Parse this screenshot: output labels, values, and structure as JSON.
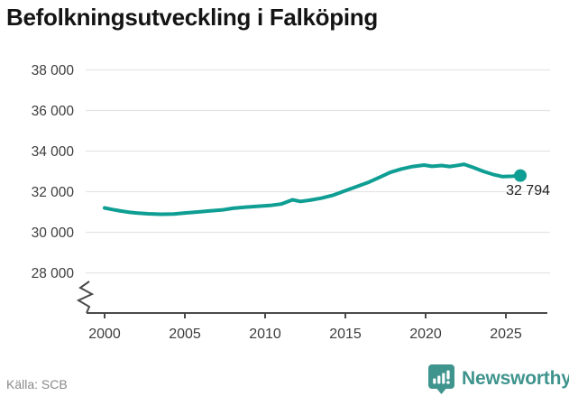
{
  "title": "Befolkningsutveckling i Falköping",
  "footer": {
    "source": "Källa: SCB",
    "brand": "Newsworthy"
  },
  "colors": {
    "line": "#0f9e93",
    "grid": "#e4e4e4",
    "axis": "#4a4a4a",
    "tick_text": "#3d3d3d",
    "brand_teal": "#3f948e"
  },
  "chart_data": {
    "type": "line",
    "title": "Befolkningsutveckling i Falköping",
    "xlabel": "",
    "ylabel": "",
    "grid": "horizontal",
    "legend": "none",
    "axis_break_y": true,
    "xlim": [
      2000,
      2026
    ],
    "ylim": [
      28000,
      38000
    ],
    "x_ticks": [
      2000,
      2005,
      2010,
      2015,
      2020,
      2025
    ],
    "x_tick_labels": [
      "2000",
      "2005",
      "2010",
      "2015",
      "2020",
      "2025"
    ],
    "y_ticks": [
      38000,
      36000,
      34000,
      32000,
      30000,
      28000
    ],
    "y_tick_labels": [
      "38 000",
      "36 000",
      "34 000",
      "32 000",
      "30 000",
      "28 000"
    ],
    "last_value": 32794,
    "last_value_label": "32 794",
    "series": [
      {
        "name": "Befolkning",
        "color": "#0f9e93",
        "points": [
          [
            2000.0,
            31200
          ],
          [
            2000.5,
            31120
          ],
          [
            2001.0,
            31050
          ],
          [
            2001.5,
            30990
          ],
          [
            2002.0,
            30950
          ],
          [
            2002.7,
            30910
          ],
          [
            2003.5,
            30890
          ],
          [
            2004.3,
            30900
          ],
          [
            2005.0,
            30950
          ],
          [
            2005.8,
            31000
          ],
          [
            2006.5,
            31050
          ],
          [
            2007.3,
            31100
          ],
          [
            2008.0,
            31180
          ],
          [
            2008.8,
            31240
          ],
          [
            2009.5,
            31280
          ],
          [
            2010.3,
            31320
          ],
          [
            2011.0,
            31390
          ],
          [
            2011.7,
            31600
          ],
          [
            2012.2,
            31520
          ],
          [
            2012.8,
            31580
          ],
          [
            2013.5,
            31680
          ],
          [
            2014.2,
            31820
          ],
          [
            2015.0,
            32050
          ],
          [
            2015.7,
            32250
          ],
          [
            2016.4,
            32450
          ],
          [
            2017.1,
            32700
          ],
          [
            2017.8,
            32950
          ],
          [
            2018.5,
            33120
          ],
          [
            2019.2,
            33240
          ],
          [
            2019.9,
            33310
          ],
          [
            2020.4,
            33250
          ],
          [
            2021.0,
            33290
          ],
          [
            2021.5,
            33240
          ],
          [
            2022.0,
            33300
          ],
          [
            2022.4,
            33350
          ],
          [
            2023.0,
            33180
          ],
          [
            2023.6,
            33000
          ],
          [
            2024.2,
            32850
          ],
          [
            2024.8,
            32740
          ],
          [
            2025.4,
            32760
          ],
          [
            2025.9,
            32794
          ]
        ]
      }
    ]
  }
}
